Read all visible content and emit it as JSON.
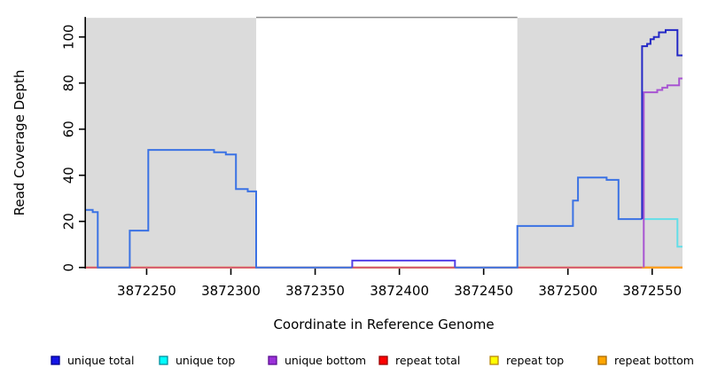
{
  "chart_data": {
    "type": "line",
    "subtype": "step",
    "title": "",
    "xlabel": "Coordinate in Reference Genome",
    "ylabel": "Read Coverage Depth",
    "xlim": [
      3872214,
      3872568
    ],
    "ylim": [
      0,
      108.3
    ],
    "grid": false,
    "legend_position": "bottom",
    "x_ticks": [
      {
        "value": 3872250,
        "label": "3872250"
      },
      {
        "value": 3872300,
        "label": "3872300"
      },
      {
        "value": 3872350,
        "label": "3872350"
      },
      {
        "value": 3872400,
        "label": "3872400"
      },
      {
        "value": 3872450,
        "label": "3872450"
      },
      {
        "value": 3872500,
        "label": "3872500"
      },
      {
        "value": 3872550,
        "label": "3872550"
      }
    ],
    "y_ticks": [
      {
        "value": 0,
        "label": "0"
      },
      {
        "value": 20,
        "label": "20"
      },
      {
        "value": 40,
        "label": "40"
      },
      {
        "value": 60,
        "label": "60"
      },
      {
        "value": 80,
        "label": "80"
      },
      {
        "value": 100,
        "label": "100"
      }
    ],
    "shaded_regions": [
      {
        "from": 3872214,
        "to": 3872315,
        "color": "#DBDBDB"
      },
      {
        "from": 3872470,
        "to": 3872568,
        "color": "#DBDBDB"
      }
    ],
    "top_border": {
      "from": 3872315,
      "to": 3872470,
      "color": "#8A8A8A"
    },
    "baseline_overlap_segment": {
      "from": 3872372,
      "to": 3872433,
      "y": 0,
      "color": "#A5D6A0"
    },
    "series": [
      {
        "name": "repeat top",
        "color": "#FFFF00",
        "points": [
          [
            3872214,
            0
          ],
          [
            3872568,
            0
          ]
        ]
      },
      {
        "name": "repeat total",
        "color": "#D44F70",
        "points": [
          [
            3872214,
            0
          ],
          [
            3872568,
            0
          ]
        ]
      },
      {
        "name": "repeat bottom",
        "color": "#FFA018",
        "points": [
          [
            3872544,
            0
          ],
          [
            3872568,
            0
          ]
        ]
      },
      {
        "name": "unique top",
        "color": "#63DEE8",
        "points": [
          [
            3872545,
            21
          ],
          [
            3872565,
            21
          ],
          [
            3872565,
            9
          ],
          [
            3872568,
            9
          ]
        ]
      },
      {
        "name": "unique bottom",
        "color": "#A855D2",
        "points": [
          [
            3872545,
            0
          ],
          [
            3872545,
            76
          ],
          [
            3872553,
            77
          ],
          [
            3872556,
            78
          ],
          [
            3872559,
            79
          ],
          [
            3872566,
            82
          ],
          [
            3872568,
            82
          ]
        ]
      },
      {
        "name": "unique total",
        "color": "#3B72E4",
        "color_segments": [
          {
            "from": 3872372,
            "to": 3872433,
            "color": "#5340E6"
          },
          {
            "from": 3872543,
            "to": 3872568,
            "color": "#2428C6"
          }
        ],
        "points": [
          [
            3872214,
            25
          ],
          [
            3872218,
            24
          ],
          [
            3872221,
            0
          ],
          [
            3872240,
            16
          ],
          [
            3872251,
            51
          ],
          [
            3872290,
            50
          ],
          [
            3872297,
            49
          ],
          [
            3872303,
            34
          ],
          [
            3872310,
            33
          ],
          [
            3872315,
            0
          ],
          [
            3872372,
            3
          ],
          [
            3872433,
            0
          ],
          [
            3872470,
            18
          ],
          [
            3872503,
            29
          ],
          [
            3872506,
            39
          ],
          [
            3872523,
            38
          ],
          [
            3872530,
            21
          ],
          [
            3872544,
            96
          ],
          [
            3872547,
            97
          ],
          [
            3872549,
            99
          ],
          [
            3872551,
            100
          ],
          [
            3872554,
            102
          ],
          [
            3872558,
            103
          ],
          [
            3872565,
            92
          ],
          [
            3872568,
            92
          ]
        ]
      }
    ],
    "legend_items": [
      {
        "label": "unique total",
        "fill": "#1414E6",
        "border": "#00008B"
      },
      {
        "label": "unique top",
        "fill": "#00FFFF",
        "border": "#008B9B"
      },
      {
        "label": "unique bottom",
        "fill": "#9B30D9",
        "border": "#5B0E91"
      },
      {
        "label": "repeat total",
        "fill": "#FF0000",
        "border": "#990000"
      },
      {
        "label": "repeat top",
        "fill": "#FFFF00",
        "border": "#B8860B"
      },
      {
        "label": "repeat bottom",
        "fill": "#FFA500",
        "border": "#A86A00"
      }
    ]
  }
}
